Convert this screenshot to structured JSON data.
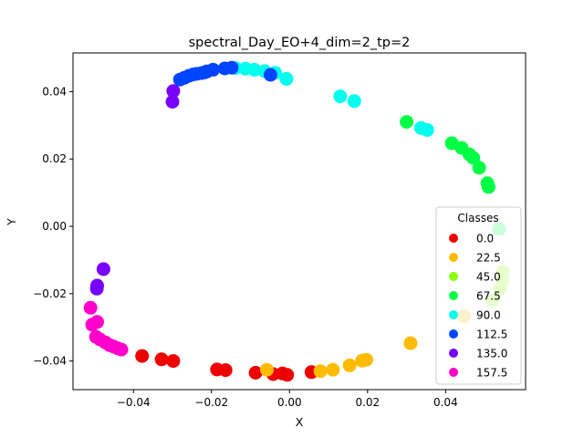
{
  "chart_data": {
    "type": "scatter",
    "title": "spectral_Day_EO+4_dim=2_tp=2",
    "xlabel": "X",
    "ylabel": "Y",
    "xlim": [
      -0.0555,
      0.0605
    ],
    "ylim": [
      -0.0485,
      0.0515
    ],
    "xticks": [
      -0.04,
      -0.02,
      0.0,
      0.02,
      0.04
    ],
    "xtick_labels": [
      "−0.04",
      "−0.02",
      "0.00",
      "0.02",
      "0.04"
    ],
    "yticks": [
      -0.04,
      -0.02,
      0.0,
      0.02,
      0.04
    ],
    "ytick_labels": [
      "−0.04",
      "−0.02",
      "0.00",
      "0.02",
      "0.04"
    ],
    "grid": false,
    "legend": {
      "title": "Classes",
      "position": "lower-right"
    },
    "series": [
      {
        "name": "0.0",
        "color": "#ee0000",
        "points": [
          [
            -0.0378,
            -0.0385
          ],
          [
            -0.0328,
            -0.0395
          ],
          [
            -0.0298,
            -0.04
          ],
          [
            -0.0186,
            -0.0425
          ],
          [
            -0.0164,
            -0.0427
          ],
          [
            -0.0087,
            -0.0435
          ],
          [
            -0.0042,
            -0.0439
          ],
          [
            -0.0018,
            -0.0437
          ],
          [
            -0.0006,
            -0.0441
          ],
          [
            0.0056,
            -0.0433
          ]
        ]
      },
      {
        "name": "22.5",
        "color": "#ffbb00",
        "points": [
          [
            -0.0058,
            -0.0426
          ],
          [
            0.0079,
            -0.043
          ],
          [
            0.0111,
            -0.0426
          ],
          [
            0.0154,
            -0.0413
          ],
          [
            0.0186,
            -0.0399
          ],
          [
            0.0197,
            -0.0396
          ],
          [
            0.031,
            -0.0347
          ],
          [
            0.0447,
            -0.0267
          ]
        ]
      },
      {
        "name": "45.0",
        "color": "#88ff00",
        "points": [
          [
            0.052,
            -0.022
          ],
          [
            0.0539,
            -0.0185
          ],
          [
            0.0545,
            -0.016
          ],
          [
            0.0547,
            -0.0135
          ]
        ]
      },
      {
        "name": "67.5",
        "color": "#00ff44",
        "points": [
          [
            0.03,
            0.031
          ],
          [
            0.0416,
            0.0247
          ],
          [
            0.0441,
            0.0233
          ],
          [
            0.0461,
            0.0214
          ],
          [
            0.0471,
            0.0203
          ],
          [
            0.0486,
            0.0174
          ],
          [
            0.0507,
            0.0128
          ],
          [
            0.051,
            0.0117
          ],
          [
            0.0537,
            -0.0008
          ]
        ]
      },
      {
        "name": "90.0",
        "color": "#00ffee",
        "points": [
          [
            -0.0139,
            0.047
          ],
          [
            -0.0113,
            0.0468
          ],
          [
            -0.009,
            0.0465
          ],
          [
            -0.0064,
            0.0461
          ],
          [
            -0.0037,
            0.0456
          ],
          [
            -0.0008,
            0.0438
          ],
          [
            0.013,
            0.0386
          ],
          [
            0.0166,
            0.0372
          ],
          [
            0.0337,
            0.0292
          ],
          [
            0.0353,
            0.0286
          ]
        ]
      },
      {
        "name": "112.5",
        "color": "#0044ff",
        "points": [
          [
            -0.0281,
            0.0436
          ],
          [
            -0.027,
            0.0441
          ],
          [
            -0.0258,
            0.0447
          ],
          [
            -0.0247,
            0.0451
          ],
          [
            -0.0238,
            0.0453
          ],
          [
            -0.0225,
            0.0455
          ],
          [
            -0.0218,
            0.0457
          ],
          [
            -0.0212,
            0.046
          ],
          [
            -0.0196,
            0.0465
          ],
          [
            -0.0166,
            0.0469
          ],
          [
            -0.0148,
            0.0471
          ],
          [
            -0.0049,
            0.045
          ]
        ]
      },
      {
        "name": "135.0",
        "color": "#7700ff",
        "points": [
          [
            -0.0298,
            0.0402
          ],
          [
            -0.03,
            0.037
          ],
          [
            -0.0477,
            -0.0127
          ],
          [
            -0.0493,
            -0.0176
          ],
          [
            -0.0494,
            -0.0185
          ]
        ]
      },
      {
        "name": "157.5",
        "color": "#ff00cc",
        "points": [
          [
            -0.051,
            -0.0242
          ],
          [
            -0.0506,
            -0.0292
          ],
          [
            -0.0493,
            -0.0284
          ],
          [
            -0.0496,
            -0.0328
          ],
          [
            -0.0486,
            -0.0336
          ],
          [
            -0.0472,
            -0.0345
          ],
          [
            -0.0461,
            -0.0353
          ],
          [
            -0.0451,
            -0.0357
          ],
          [
            -0.0441,
            -0.0362
          ],
          [
            -0.0431,
            -0.0366
          ]
        ]
      }
    ]
  }
}
